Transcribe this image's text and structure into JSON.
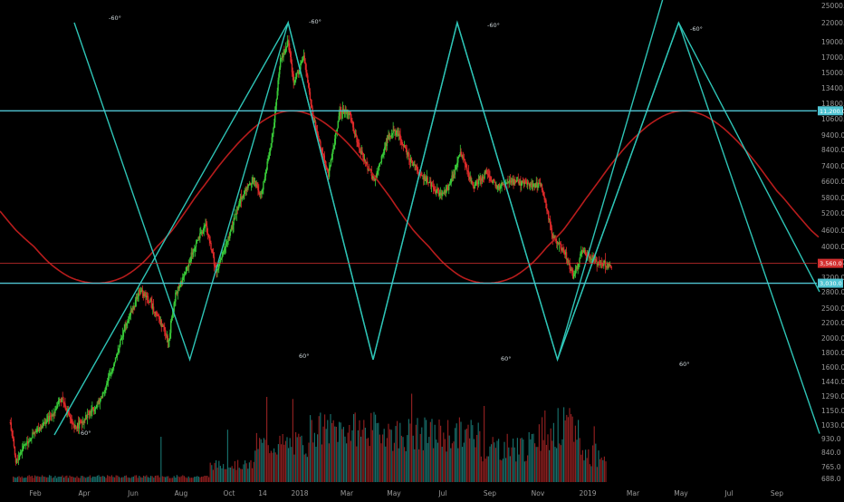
{
  "chart_data": {
    "type": "candlestick",
    "x_ticks": [
      "Feb",
      "Apr",
      "Jun",
      "Aug",
      "Oct",
      "14",
      "2018",
      "Mar",
      "May",
      "Jul",
      "Sep",
      "Nov",
      "2019",
      "Mar",
      "May",
      "Jul",
      "Sep"
    ],
    "y_ticks": [
      25000.0,
      22000.0,
      19000.0,
      17000.0,
      15000.0,
      13400.0,
      11800.0,
      10600.0,
      9400.0,
      8400.0,
      7400.0,
      6600.0,
      5800.0,
      5200.0,
      4600.0,
      4000.0,
      3600.0,
      3200.0,
      2800.0,
      2500.0,
      2200.0,
      2000.0,
      1800.0,
      1600.0,
      1440.0,
      1290.0,
      1150.0,
      1030.0,
      930.0,
      840.0,
      765.0,
      688.0
    ],
    "y_scale": "log",
    "y_tick_labels": [
      "25000.0",
      "22000.0",
      "19000.0",
      "17000.0",
      "15000.0",
      "13400.0",
      "11800.0",
      "10600.0",
      "9400.0",
      "8400.0",
      "7400.0",
      "6600.0",
      "5800.0",
      "5200.0",
      "4600.0",
      "4000.0",
      "3600.0",
      "3200.0",
      "2800.0",
      "2500.0",
      "2200.0",
      "2000.0",
      "1800.0",
      "1600.0",
      "1440.0",
      "1290.0",
      "1150.0",
      "1030.0",
      "930.0",
      "840.0",
      "765.0",
      "688.0"
    ],
    "horizontal_levels": [
      {
        "value": 11200,
        "label": "11,200.0",
        "color": "#4fc3d1"
      },
      {
        "value": 3560,
        "label": "3,560.0",
        "color": "#d32f2f"
      },
      {
        "value": 3030,
        "label": "3,030.0",
        "color": "#4fc3d1"
      }
    ],
    "angle_labels": [
      "-60°",
      "-60°",
      "-60°",
      "-60°",
      "60°",
      "60°",
      "60°",
      "60°"
    ],
    "triangle_waves": {
      "color": "#2ec4b6",
      "apex_dates": [
        "2017-03-20",
        "2017-12-17",
        "2018-07-20",
        "2019-04-28"
      ],
      "trough_dates": [
        "2017-08-12",
        "2018-04-04",
        "2018-11-25"
      ],
      "peak_value": 22000,
      "trough_value": 1700
    },
    "sine_wave": {
      "color": "#b71c1c",
      "peak_value": 11200,
      "trough_value": 3030,
      "peak_dates": [
        "2017-12-22",
        "2019-05-05"
      ],
      "trough_dates": [
        "2017-03-18",
        "2018-08-25"
      ]
    },
    "price_series": [
      {
        "date": "2017-01-05",
        "value": 1050
      },
      {
        "date": "2017-01-11",
        "value": 780
      },
      {
        "date": "2017-01-20",
        "value": 890
      },
      {
        "date": "2017-02-05",
        "value": 1000
      },
      {
        "date": "2017-02-20",
        "value": 1100
      },
      {
        "date": "2017-03-05",
        "value": 1270
      },
      {
        "date": "2017-03-20",
        "value": 1000
      },
      {
        "date": "2017-04-01",
        "value": 1080
      },
      {
        "date": "2017-04-20",
        "value": 1230
      },
      {
        "date": "2017-05-05",
        "value": 1550
      },
      {
        "date": "2017-05-20",
        "value": 2100
      },
      {
        "date": "2017-06-10",
        "value": 2850
      },
      {
        "date": "2017-06-25",
        "value": 2550
      },
      {
        "date": "2017-07-16",
        "value": 1950
      },
      {
        "date": "2017-07-25",
        "value": 2750
      },
      {
        "date": "2017-08-05",
        "value": 3250
      },
      {
        "date": "2017-08-20",
        "value": 4100
      },
      {
        "date": "2017-09-01",
        "value": 4800
      },
      {
        "date": "2017-09-15",
        "value": 3300
      },
      {
        "date": "2017-09-30",
        "value": 4300
      },
      {
        "date": "2017-10-15",
        "value": 5700
      },
      {
        "date": "2017-11-01",
        "value": 6700
      },
      {
        "date": "2017-11-12",
        "value": 5900
      },
      {
        "date": "2017-11-28",
        "value": 9800
      },
      {
        "date": "2017-12-07",
        "value": 16500
      },
      {
        "date": "2017-12-17",
        "value": 19000
      },
      {
        "date": "2017-12-24",
        "value": 13800
      },
      {
        "date": "2018-01-06",
        "value": 17000
      },
      {
        "date": "2018-01-17",
        "value": 10900
      },
      {
        "date": "2018-02-06",
        "value": 6900
      },
      {
        "date": "2018-02-20",
        "value": 11200
      },
      {
        "date": "2018-03-05",
        "value": 11000
      },
      {
        "date": "2018-03-18",
        "value": 8300
      },
      {
        "date": "2018-04-06",
        "value": 6600
      },
      {
        "date": "2018-04-24",
        "value": 9400
      },
      {
        "date": "2018-05-05",
        "value": 9600
      },
      {
        "date": "2018-05-25",
        "value": 7400
      },
      {
        "date": "2018-06-10",
        "value": 6700
      },
      {
        "date": "2018-06-28",
        "value": 5900
      },
      {
        "date": "2018-07-10",
        "value": 6400
      },
      {
        "date": "2018-07-24",
        "value": 8200
      },
      {
        "date": "2018-08-10",
        "value": 6300
      },
      {
        "date": "2018-08-28",
        "value": 7100
      },
      {
        "date": "2018-09-10",
        "value": 6300
      },
      {
        "date": "2018-10-01",
        "value": 6600
      },
      {
        "date": "2018-10-20",
        "value": 6450
      },
      {
        "date": "2018-11-05",
        "value": 6400
      },
      {
        "date": "2018-11-20",
        "value": 4300
      },
      {
        "date": "2018-12-05",
        "value": 3800
      },
      {
        "date": "2018-12-15",
        "value": 3200
      },
      {
        "date": "2018-12-25",
        "value": 3900
      },
      {
        "date": "2019-01-10",
        "value": 3650
      },
      {
        "date": "2019-01-25",
        "value": 3550
      },
      {
        "date": "2019-02-01",
        "value": 3450
      }
    ],
    "volume": {
      "max_tick_value": 1440,
      "color_up": "#1b7f7a",
      "color_down": "#a32525"
    }
  }
}
